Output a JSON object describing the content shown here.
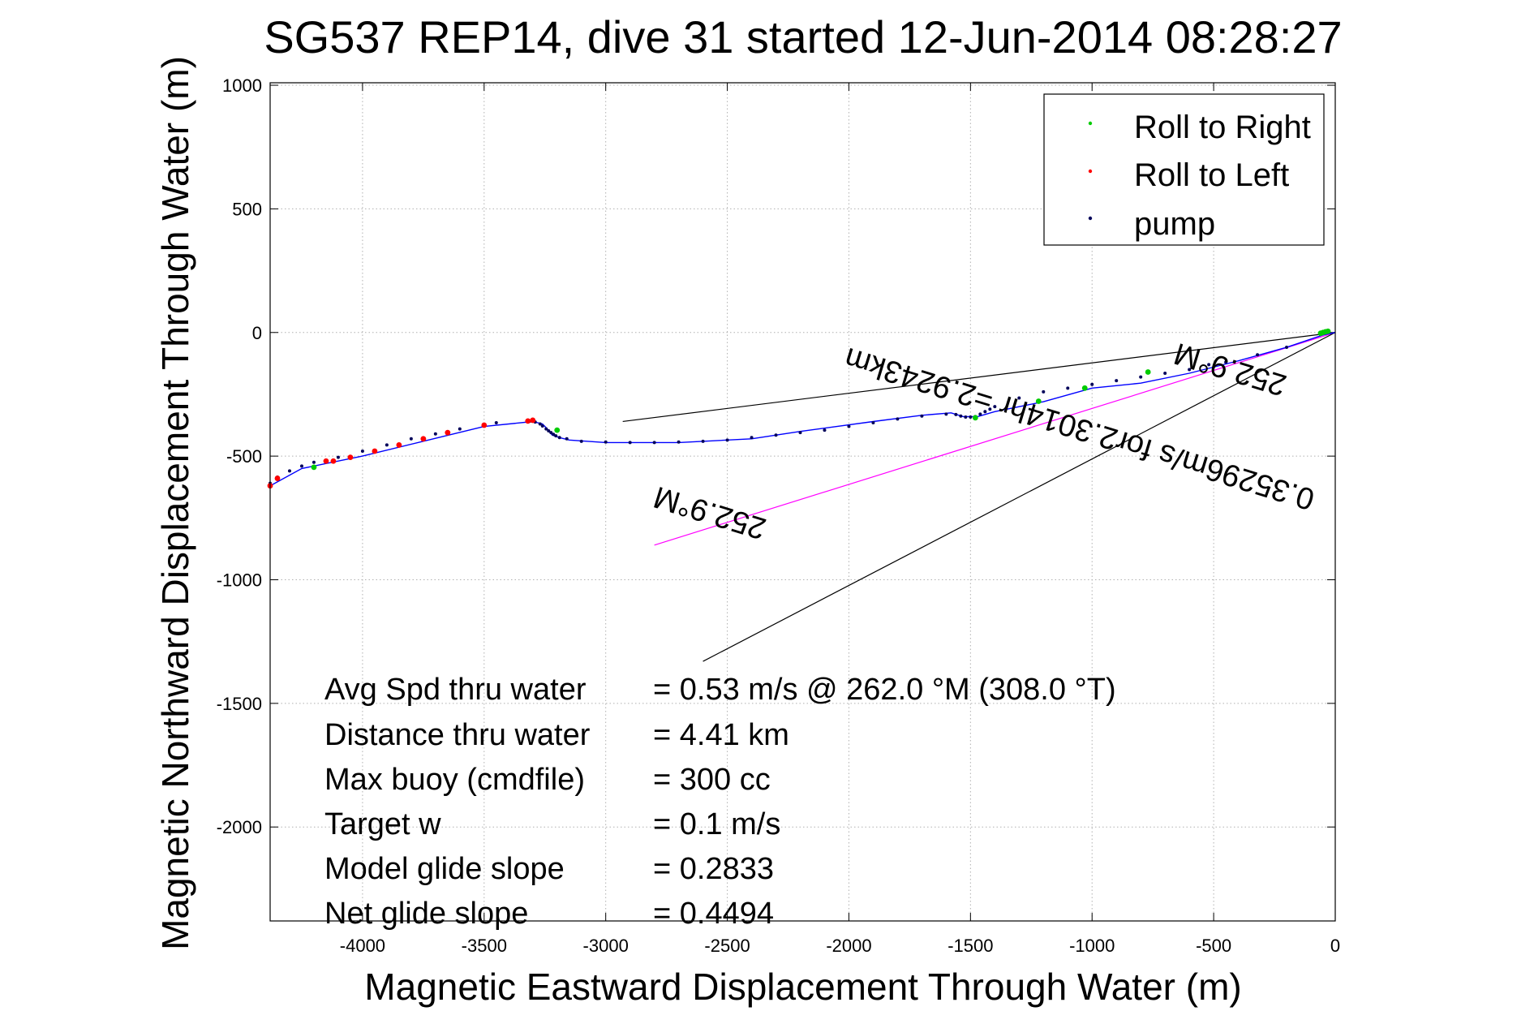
{
  "chart_data": {
    "type": "line",
    "title": "SG537 REP14, dive 31 started 12-Jun-2014 08:28:27",
    "xlabel": "Magnetic Eastward Displacement Through Water (m)",
    "ylabel": "Magnetic Northward Displacement Through Water (m)",
    "xlim": [
      -4380,
      0
    ],
    "ylim": [
      -2380,
      1010
    ],
    "xticks": [
      -4000,
      -3500,
      -3000,
      -2500,
      -2000,
      -1500,
      -1000,
      -500,
      0
    ],
    "yticks": [
      1000,
      500,
      0,
      -500,
      -1000,
      -1500,
      -2000
    ],
    "grid": true,
    "legend_position": "top-right",
    "track": {
      "x": [
        0,
        -50,
        -200,
        -400,
        -600,
        -800,
        -1000,
        -1200,
        -1300,
        -1400,
        -1470,
        -1530,
        -1580,
        -1700,
        -1900,
        -2200,
        -2400,
        -2700,
        -3000,
        -3150,
        -3190,
        -3220,
        -3240,
        -3260,
        -3300,
        -3500,
        -3750,
        -4000,
        -4250,
        -4380
      ],
      "y": [
        0,
        -10,
        -60,
        -115,
        -165,
        -205,
        -225,
        -280,
        -300,
        -320,
        -340,
        -340,
        -325,
        -335,
        -360,
        -400,
        -430,
        -445,
        -445,
        -435,
        -425,
        -415,
        -390,
        -370,
        -360,
        -380,
        -440,
        -500,
        -550,
        -620
      ],
      "color": "#0000ff"
    },
    "series": [
      {
        "name": "Roll to Right",
        "color": "#00cc00",
        "x": [
          -30,
          -40,
          -50,
          -60,
          -770,
          -1030,
          -1220,
          -1480,
          -3200,
          -4200
        ],
        "y": [
          5,
          3,
          0,
          -3,
          -160,
          -225,
          -278,
          -345,
          -395,
          -545
        ]
      },
      {
        "name": "Roll to Left",
        "color": "#ff0000",
        "x": [
          -3300,
          -3320,
          -3500,
          -3650,
          -3750,
          -3850,
          -3950,
          -4050,
          -4120,
          -4150,
          -4350,
          -4380
        ],
        "y": [
          -355,
          -358,
          -375,
          -405,
          -430,
          -455,
          -480,
          -505,
          -520,
          -520,
          -590,
          -620
        ],
        "point_count": 12
      },
      {
        "name": "pump",
        "color": "#00005a",
        "x": [
          -200,
          -320,
          -450,
          -520,
          -600,
          -700,
          -800,
          -900,
          -1000,
          -1100,
          -1200,
          -1300,
          -1400,
          -1420,
          -1440,
          -1460,
          -1480,
          -1500,
          -1520,
          -1540,
          -1560,
          -1600,
          -1700,
          -1800,
          -1900,
          -2000,
          -2100,
          -2200,
          -2300,
          -2400,
          -2500,
          -2600,
          -2700,
          -2800,
          -2900,
          -3000,
          -3100,
          -3160,
          -3190,
          -3205,
          -3215,
          -3225,
          -3235,
          -3245,
          -3260,
          -3270,
          -3290,
          -3310,
          -3450,
          -3600,
          -3700,
          -3800,
          -3900,
          -4000,
          -4100,
          -4200,
          -4250,
          -4300,
          -4350,
          -4380
        ],
        "y": [
          -60,
          -90,
          -120,
          -130,
          -150,
          -165,
          -180,
          -195,
          -210,
          -225,
          -240,
          -265,
          -300,
          -310,
          -320,
          -330,
          -340,
          -342,
          -342,
          -338,
          -332,
          -330,
          -338,
          -350,
          -365,
          -380,
          -395,
          -405,
          -415,
          -425,
          -435,
          -440,
          -443,
          -445,
          -445,
          -443,
          -440,
          -430,
          -425,
          -418,
          -412,
          -405,
          -398,
          -390,
          -378,
          -370,
          -362,
          -358,
          -365,
          -390,
          -410,
          -430,
          -455,
          -480,
          -505,
          -525,
          -540,
          -560,
          -585,
          -610
        ]
      }
    ],
    "reference_lines": [
      {
        "x": [
          0,
          -2930
        ],
        "y": [
          0,
          -360
        ],
        "color": "#000000"
      },
      {
        "x": [
          0,
          -2800
        ],
        "y": [
          0,
          -860
        ],
        "color": "#ff00ff"
      },
      {
        "x": [
          0,
          -2600
        ],
        "y": [
          0,
          -1330
        ],
        "color": "#000000"
      }
    ],
    "annotations": [
      {
        "text": "252.9°M",
        "x": -420,
        "y": -110,
        "rotate": 197
      },
      {
        "text": "0.35296m/s for2.3014hr =2.9243km",
        "x": -1040,
        "y": -350,
        "rotate": 197
      },
      {
        "text": "252.9°M",
        "x": -2560,
        "y": -690,
        "rotate": 197
      }
    ],
    "stats": [
      {
        "label": "Avg Spd thru water",
        "value": "=  0.53 m/s @ 262.0 °M (308.0 °T)"
      },
      {
        "label": "Distance thru water",
        "value": "=  4.41 km"
      },
      {
        "label": "Max buoy (cmdfile)",
        "value": "= 300 cc"
      },
      {
        "label": "Target w",
        "value": "= 0.1 m/s"
      },
      {
        "label": "Model glide slope",
        "value": "= 0.2833"
      },
      {
        "label": "Net glide slope",
        "value": "= 0.4494"
      }
    ]
  }
}
